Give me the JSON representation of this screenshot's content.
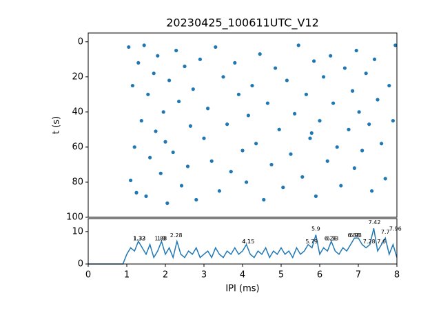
{
  "chart_data": [
    {
      "type": "scatter",
      "title": "20230425_100611UTC_V12",
      "y_label": "t (s)",
      "color": "#1f77b4",
      "x": [
        1.05,
        1.1,
        1.15,
        1.2,
        1.25,
        1.3,
        1.38,
        1.45,
        1.5,
        1.55,
        1.6,
        1.7,
        1.75,
        1.8,
        1.88,
        1.95,
        2.0,
        2.05,
        2.1,
        2.2,
        2.28,
        2.35,
        2.42,
        2.5,
        2.58,
        2.65,
        2.72,
        2.8,
        2.9,
        3.0,
        3.1,
        3.2,
        3.3,
        3.4,
        3.5,
        3.6,
        3.7,
        3.8,
        3.9,
        4.0,
        4.1,
        4.15,
        4.25,
        4.35,
        4.45,
        4.55,
        4.65,
        4.75,
        4.85,
        4.95,
        5.05,
        5.15,
        5.25,
        5.35,
        5.45,
        5.55,
        5.65,
        5.75,
        5.79,
        5.85,
        5.9,
        6.0,
        6.1,
        6.2,
        6.28,
        6.35,
        6.45,
        6.55,
        6.65,
        6.75,
        6.85,
        6.9,
        6.95,
        7.02,
        7.1,
        7.2,
        7.28,
        7.35,
        7.42,
        7.5,
        7.6,
        7.7,
        7.8,
        7.9,
        7.96
      ],
      "values": [
        3,
        79,
        25,
        60,
        86,
        12,
        45,
        2,
        88,
        30,
        66,
        18,
        51,
        8,
        75,
        40,
        57,
        92,
        22,
        63,
        5,
        34,
        82,
        14,
        71,
        48,
        27,
        90,
        10,
        55,
        38,
        68,
        3,
        85,
        20,
        47,
        74,
        12,
        30,
        62,
        80,
        42,
        25,
        58,
        7,
        90,
        35,
        70,
        15,
        50,
        83,
        22,
        64,
        41,
        2,
        77,
        30,
        55,
        52,
        11,
        88,
        45,
        20,
        68,
        8,
        35,
        60,
        82,
        15,
        50,
        28,
        72,
        5,
        40,
        62,
        18,
        47,
        85,
        10,
        33,
        58,
        78,
        25,
        45,
        2
      ],
      "xlim": [
        0,
        8
      ],
      "ylim": [
        100,
        -5
      ],
      "yticks": [
        0,
        20,
        40,
        60,
        80,
        100
      ]
    },
    {
      "type": "line",
      "x_label": "IPI (ms)",
      "color": "#1f77b4",
      "x": [
        0,
        0.1,
        0.2,
        0.3,
        0.4,
        0.5,
        0.6,
        0.7,
        0.8,
        0.9,
        1.0,
        1.1,
        1.2,
        1.3,
        1.4,
        1.5,
        1.6,
        1.7,
        1.8,
        1.9,
        2.0,
        2.1,
        2.2,
        2.3,
        2.4,
        2.5,
        2.6,
        2.7,
        2.8,
        2.9,
        3.0,
        3.1,
        3.2,
        3.3,
        3.4,
        3.5,
        3.6,
        3.7,
        3.8,
        3.9,
        4.0,
        4.1,
        4.2,
        4.3,
        4.4,
        4.5,
        4.6,
        4.7,
        4.8,
        4.9,
        5.0,
        5.1,
        5.2,
        5.3,
        5.4,
        5.5,
        5.6,
        5.7,
        5.8,
        5.9,
        6.0,
        6.1,
        6.2,
        6.3,
        6.4,
        6.5,
        6.6,
        6.7,
        6.8,
        6.9,
        7.0,
        7.1,
        7.2,
        7.3,
        7.4,
        7.5,
        7.6,
        7.7,
        7.8,
        7.9,
        8.0
      ],
      "values": [
        0,
        0,
        0,
        0,
        0,
        0,
        0,
        0,
        0,
        0,
        3,
        5,
        4,
        7,
        5,
        3,
        6,
        2,
        4,
        7,
        3,
        5,
        2,
        7,
        3,
        2,
        4,
        3,
        5,
        2,
        3,
        4,
        2,
        5,
        3,
        2,
        4,
        3,
        5,
        3,
        4,
        6,
        3,
        2,
        4,
        3,
        5,
        2,
        4,
        3,
        5,
        3,
        4,
        2,
        5,
        3,
        4,
        6,
        5,
        9,
        3,
        5,
        4,
        7,
        4,
        3,
        5,
        4,
        6,
        8,
        8,
        6,
        5,
        6,
        11,
        4,
        6,
        8,
        3,
        6,
        2
      ],
      "annotations": [
        {
          "x": 1.32,
          "y": 7
        },
        {
          "x": 1.33,
          "y": 7
        },
        {
          "x": 1.88,
          "y": 7
        },
        {
          "x": 1.9,
          "y": 7
        },
        {
          "x": 2.28,
          "y": 8
        },
        {
          "x": 4.1,
          "y": 6
        },
        {
          "x": 4.15,
          "y": 6
        },
        {
          "x": 5.79,
          "y": 6
        },
        {
          "x": 5.9,
          "y": 10
        },
        {
          "x": 6.28,
          "y": 7
        },
        {
          "x": 6.33,
          "y": 7
        },
        {
          "x": 6.88,
          "y": 8
        },
        {
          "x": 6.93,
          "y": 8
        },
        {
          "x": 7.28,
          "y": 6
        },
        {
          "x": 7.42,
          "y": 12
        },
        {
          "x": 7.6,
          "y": 6
        },
        {
          "x": 7.7,
          "y": 9
        },
        {
          "x": 7.96,
          "y": 10
        }
      ],
      "xlim": [
        0,
        8
      ],
      "ylim": [
        0,
        14
      ],
      "xticks": [
        0,
        1,
        2,
        3,
        4,
        5,
        6,
        7,
        8
      ],
      "yticks": [
        0,
        10
      ]
    }
  ]
}
